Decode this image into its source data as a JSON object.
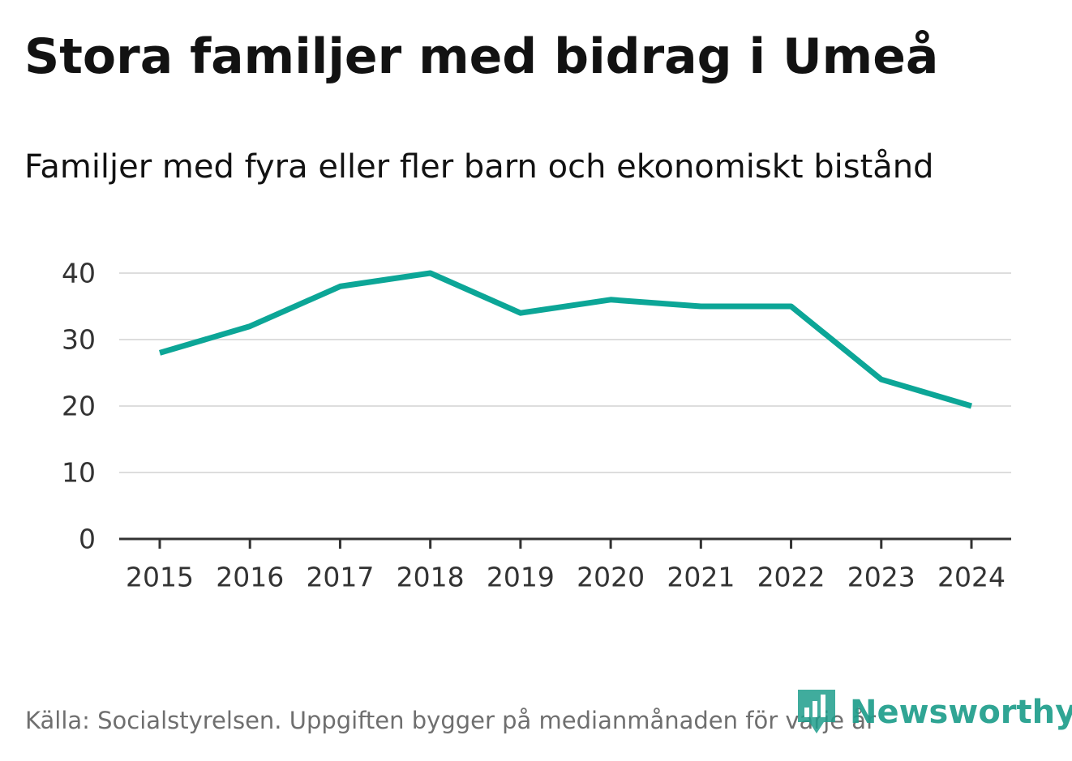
{
  "header": {
    "title": "Stora familjer med bidrag i Umeå",
    "subtitle": "Familjer med fyra eller fler barn och ekonomiskt bistånd"
  },
  "footer": {
    "source": "Källa: Socialstyrelsen. Uppgiften bygger på medianmånaden för varje år",
    "brand": "Newsworthy"
  },
  "colors": {
    "line": "#0ca697",
    "grid": "#dddddd",
    "axis": "#333333",
    "brand": "#1f9e8c"
  },
  "chart_data": {
    "type": "line",
    "title": "Stora familjer med bidrag i Umeå",
    "subtitle": "Familjer med fyra eller fler barn och ekonomiskt bistånd",
    "xlabel": "",
    "ylabel": "",
    "x": [
      "2015",
      "2016",
      "2017",
      "2018",
      "2019",
      "2020",
      "2021",
      "2022",
      "2023",
      "2024"
    ],
    "series": [
      {
        "name": "Familjer med fyra eller fler barn och ekonomiskt bistånd",
        "values": [
          28,
          32,
          38,
          40,
          34,
          36,
          35,
          35,
          24,
          20
        ]
      }
    ],
    "ylim": [
      0,
      40
    ],
    "yticks": [
      0,
      10,
      20,
      30,
      40
    ],
    "grid": true,
    "legend": "none"
  }
}
